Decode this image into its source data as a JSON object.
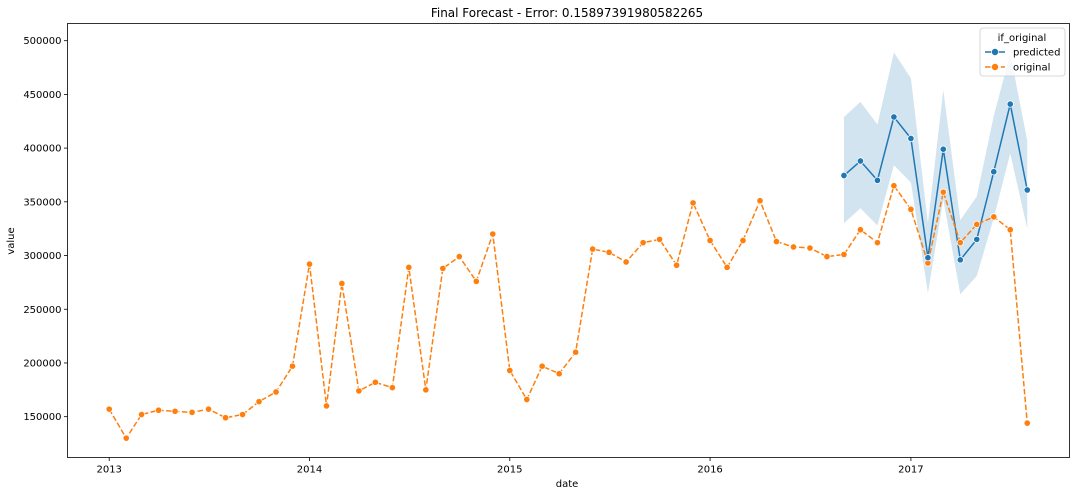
{
  "chart_data": {
    "type": "line",
    "title": "Final Forecast - Error: 0.15897391980582265",
    "xlabel": "date",
    "ylabel": "value",
    "x_ticks": [
      "2013",
      "2014",
      "2015",
      "2016",
      "2017"
    ],
    "y_ticks": [
      "150000",
      "200000",
      "250000",
      "300000",
      "350000",
      "400000",
      "450000",
      "500000"
    ],
    "ylim": [
      112000,
      516000
    ],
    "xlim": [
      "2012-10-17",
      "2017-10-17"
    ],
    "grid": false,
    "legend": {
      "title": "if_original",
      "placement": "top-right"
    },
    "series": [
      {
        "name": "predicted",
        "color": "#1f77b4",
        "line_style": "solid",
        "points": [
          [
            "2016-09-01",
            374500
          ],
          [
            "2016-10-01",
            388000
          ],
          [
            "2016-11-01",
            370000
          ],
          [
            "2016-12-01",
            429000
          ],
          [
            "2017-01-01",
            409000
          ],
          [
            "2017-02-01",
            298000
          ],
          [
            "2017-03-01",
            399000
          ],
          [
            "2017-04-01",
            296000
          ],
          [
            "2017-05-01",
            315000
          ],
          [
            "2017-06-01",
            378000
          ],
          [
            "2017-07-01",
            441000
          ],
          [
            "2017-08-01",
            361000
          ]
        ],
        "interval": [
          [
            330000,
            429000
          ],
          [
            344000,
            443000
          ],
          [
            328000,
            422000
          ],
          [
            384000,
            489000
          ],
          [
            368000,
            465000
          ],
          [
            265000,
            330000
          ],
          [
            352000,
            454000
          ],
          [
            264000,
            333000
          ],
          [
            281000,
            355000
          ],
          [
            335000,
            430000
          ],
          [
            395000,
            488000
          ],
          [
            325000,
            407000
          ]
        ]
      },
      {
        "name": "original",
        "color": "#ff7f0e",
        "line_style": "dashed",
        "points": [
          [
            "2013-01-01",
            157000
          ],
          [
            "2013-02-01",
            130000
          ],
          [
            "2013-03-01",
            152000
          ],
          [
            "2013-04-01",
            156000
          ],
          [
            "2013-05-01",
            155000
          ],
          [
            "2013-06-01",
            154000
          ],
          [
            "2013-07-01",
            157000
          ],
          [
            "2013-08-01",
            149000
          ],
          [
            "2013-09-01",
            152000
          ],
          [
            "2013-10-01",
            164000
          ],
          [
            "2013-11-01",
            173000
          ],
          [
            "2013-12-01",
            197000
          ],
          [
            "2014-01-01",
            292000
          ],
          [
            "2014-02-01",
            160000
          ],
          [
            "2014-03-01",
            274000
          ],
          [
            "2014-04-01",
            174000
          ],
          [
            "2014-05-01",
            182000
          ],
          [
            "2014-06-01",
            177000
          ],
          [
            "2014-07-01",
            289000
          ],
          [
            "2014-08-01",
            175000
          ],
          [
            "2014-09-01",
            288000
          ],
          [
            "2014-10-01",
            299000
          ],
          [
            "2014-11-01",
            276000
          ],
          [
            "2014-12-01",
            320000
          ],
          [
            "2015-01-01",
            193000
          ],
          [
            "2015-02-01",
            166000
          ],
          [
            "2015-03-01",
            197000
          ],
          [
            "2015-04-01",
            190000
          ],
          [
            "2015-05-01",
            210000
          ],
          [
            "2015-06-01",
            306000
          ],
          [
            "2015-07-01",
            303000
          ],
          [
            "2015-08-01",
            294000
          ],
          [
            "2015-09-01",
            312000
          ],
          [
            "2015-10-01",
            315000
          ],
          [
            "2015-11-01",
            291000
          ],
          [
            "2015-12-01",
            349000
          ],
          [
            "2016-01-01",
            314000
          ],
          [
            "2016-02-01",
            289000
          ],
          [
            "2016-03-01",
            314000
          ],
          [
            "2016-04-01",
            351000
          ],
          [
            "2016-05-01",
            313000
          ],
          [
            "2016-06-01",
            308000
          ],
          [
            "2016-07-01",
            307000
          ],
          [
            "2016-08-01",
            299000
          ],
          [
            "2016-09-01",
            301000
          ],
          [
            "2016-10-01",
            324000
          ],
          [
            "2016-11-01",
            312000
          ],
          [
            "2016-12-01",
            365000
          ],
          [
            "2017-01-01",
            343000
          ],
          [
            "2017-02-01",
            293000
          ],
          [
            "2017-03-01",
            359000
          ],
          [
            "2017-04-01",
            312000
          ],
          [
            "2017-05-01",
            329000
          ],
          [
            "2017-06-01",
            336000
          ],
          [
            "2017-07-01",
            324000
          ],
          [
            "2017-08-01",
            144000
          ]
        ]
      }
    ]
  }
}
